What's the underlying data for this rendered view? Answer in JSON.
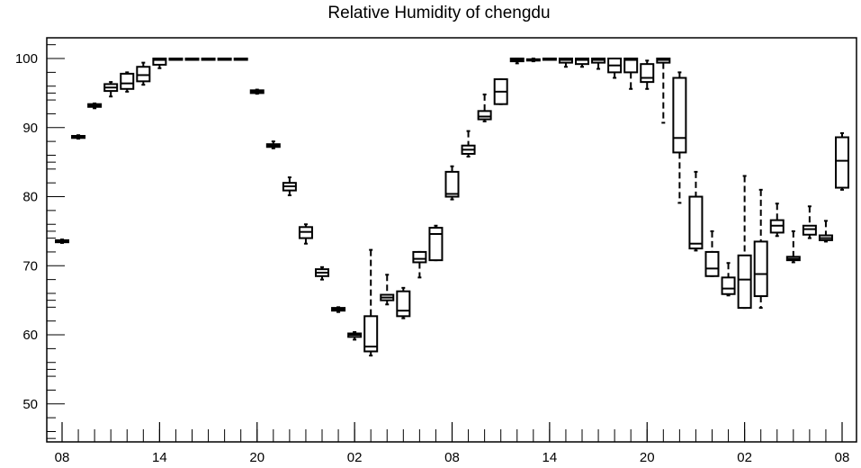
{
  "chart_data": {
    "type": "box",
    "title": "Relative Humidity of chengdu",
    "xlabel": "",
    "ylabel": "",
    "ylim": [
      44.5,
      103
    ],
    "y_ticks": [
      50,
      60,
      70,
      80,
      90,
      100
    ],
    "x_tick_labels": [
      {
        "label": "08",
        "index": 0
      },
      {
        "label": "14",
        "index": 6
      },
      {
        "label": "20",
        "index": 12
      },
      {
        "label": "02",
        "index": 18
      },
      {
        "label": "08",
        "index": 24
      },
      {
        "label": "14",
        "index": 30
      },
      {
        "label": "20",
        "index": 36
      },
      {
        "label": "02",
        "index": 42
      },
      {
        "label": "08",
        "index": 48
      }
    ],
    "x_minor_every": 1,
    "x_count": 49,
    "series": [
      {
        "values": [
          {
            "x": 0,
            "min": 73.3,
            "q1": 73.4,
            "median": 73.5,
            "q3": 73.7,
            "max": 73.8
          },
          {
            "x": 1,
            "min": 88.4,
            "q1": 88.5,
            "median": 88.7,
            "q3": 88.8,
            "max": 88.9
          },
          {
            "x": 2,
            "min": 92.8,
            "q1": 93.0,
            "median": 93.2,
            "q3": 93.4,
            "max": 93.5
          },
          {
            "x": 3,
            "min": 94.5,
            "q1": 95.3,
            "median": 95.8,
            "q3": 96.3,
            "max": 96.6
          },
          {
            "x": 4,
            "min": 95.2,
            "q1": 95.6,
            "median": 96.4,
            "q3": 97.8,
            "max": 98.0
          },
          {
            "x": 5,
            "min": 96.2,
            "q1": 96.7,
            "median": 97.6,
            "q3": 98.8,
            "max": 99.4
          },
          {
            "x": 6,
            "min": 98.6,
            "q1": 99.1,
            "median": 99.8,
            "q3": 100,
            "max": 100
          },
          {
            "x": 7,
            "min": 100,
            "q1": 100,
            "median": 100,
            "q3": 100,
            "max": 100
          },
          {
            "x": 8,
            "min": 100,
            "q1": 100,
            "median": 100,
            "q3": 100,
            "max": 100
          },
          {
            "x": 9,
            "min": 100,
            "q1": 100,
            "median": 100,
            "q3": 100,
            "max": 100
          },
          {
            "x": 10,
            "min": 100,
            "q1": 100,
            "median": 100,
            "q3": 100,
            "max": 100
          },
          {
            "x": 11,
            "min": 100,
            "q1": 100,
            "median": 100,
            "q3": 100,
            "max": 100
          },
          {
            "x": 12,
            "min": 94.9,
            "q1": 95.0,
            "median": 95.2,
            "q3": 95.4,
            "max": 95.5
          },
          {
            "x": 13,
            "min": 87.0,
            "q1": 87.2,
            "median": 87.4,
            "q3": 87.6,
            "max": 88.0
          },
          {
            "x": 14,
            "min": 80.2,
            "q1": 80.9,
            "median": 81.5,
            "q3": 82.0,
            "max": 82.8
          },
          {
            "x": 15,
            "min": 73.2,
            "q1": 74.0,
            "median": 74.9,
            "q3": 75.6,
            "max": 76.0
          },
          {
            "x": 16,
            "min": 68.0,
            "q1": 68.5,
            "median": 69.0,
            "q3": 69.5,
            "max": 69.8
          },
          {
            "x": 17,
            "min": 63.3,
            "q1": 63.5,
            "median": 63.7,
            "q3": 63.9,
            "max": 64.0
          },
          {
            "x": 18,
            "min": 59.3,
            "q1": 59.7,
            "median": 60.0,
            "q3": 60.2,
            "max": 60.4
          },
          {
            "x": 19,
            "min": 57.0,
            "q1": 57.6,
            "median": 58.3,
            "q3": 62.7,
            "max": 72.3
          },
          {
            "x": 20,
            "min": 64.4,
            "q1": 65.0,
            "median": 65.4,
            "q3": 65.8,
            "max": 68.7
          },
          {
            "x": 21,
            "min": 62.4,
            "q1": 62.7,
            "median": 63.5,
            "q3": 66.3,
            "max": 66.8
          },
          {
            "x": 22,
            "min": 68.3,
            "q1": 70.5,
            "median": 71.0,
            "q3": 72.0,
            "max": 72.0
          },
          {
            "x": 23,
            "min": 70.8,
            "q1": 70.8,
            "median": 74.6,
            "q3": 75.5,
            "max": 75.8
          },
          {
            "x": 24,
            "min": 79.6,
            "q1": 80.0,
            "median": 80.4,
            "q3": 83.6,
            "max": 84.4
          },
          {
            "x": 25,
            "min": 85.8,
            "q1": 86.2,
            "median": 86.8,
            "q3": 87.4,
            "max": 89.5
          },
          {
            "x": 26,
            "min": 90.9,
            "q1": 91.2,
            "median": 91.6,
            "q3": 92.4,
            "max": 94.8
          },
          {
            "x": 27,
            "min": 93.4,
            "q1": 93.4,
            "median": 95.2,
            "q3": 97.0,
            "max": 97.0
          },
          {
            "x": 28,
            "min": 99.3,
            "q1": 99.6,
            "median": 99.8,
            "q3": 100,
            "max": 100
          },
          {
            "x": 29,
            "min": 99.6,
            "q1": 99.7,
            "median": 99.8,
            "q3": 99.9,
            "max": 100
          },
          {
            "x": 30,
            "min": 99.9,
            "q1": 100,
            "median": 100,
            "q3": 100,
            "max": 100
          },
          {
            "x": 31,
            "min": 98.8,
            "q1": 99.4,
            "median": 99.8,
            "q3": 100,
            "max": 100
          },
          {
            "x": 32,
            "min": 98.8,
            "q1": 99.2,
            "median": 99.8,
            "q3": 100,
            "max": 100
          },
          {
            "x": 33,
            "min": 98.5,
            "q1": 99.4,
            "median": 99.8,
            "q3": 100,
            "max": 100
          },
          {
            "x": 34,
            "min": 97.2,
            "q1": 98.0,
            "median": 99.0,
            "q3": 100,
            "max": 100
          },
          {
            "x": 35,
            "min": 95.6,
            "q1": 98.0,
            "median": 99.8,
            "q3": 100,
            "max": 100
          },
          {
            "x": 36,
            "min": 95.6,
            "q1": 96.6,
            "median": 97.2,
            "q3": 99.2,
            "max": 99.7
          },
          {
            "x": 37,
            "min": 90.7,
            "q1": 99.4,
            "median": 99.8,
            "q3": 100,
            "max": 100
          },
          {
            "x": 38,
            "min": 79.1,
            "q1": 86.4,
            "median": 88.5,
            "q3": 97.2,
            "max": 98.0
          },
          {
            "x": 39,
            "min": 72.2,
            "q1": 72.5,
            "median": 73.2,
            "q3": 80.0,
            "max": 83.6
          },
          {
            "x": 40,
            "min": 68.5,
            "q1": 68.5,
            "median": 69.6,
            "q3": 72.0,
            "max": 75.0
          },
          {
            "x": 41,
            "min": 65.7,
            "q1": 65.9,
            "median": 66.7,
            "q3": 68.3,
            "max": 70.4
          },
          {
            "x": 42,
            "min": 63.9,
            "q1": 63.9,
            "median": 68.0,
            "q3": 71.5,
            "max": 83.0
          },
          {
            "x": 43,
            "min": 63.9,
            "q1": 65.6,
            "median": 68.8,
            "q3": 73.5,
            "max": 81.0
          },
          {
            "x": 44,
            "min": 74.3,
            "q1": 74.8,
            "median": 75.8,
            "q3": 76.6,
            "max": 79.0
          },
          {
            "x": 45,
            "min": 70.5,
            "q1": 70.8,
            "median": 71.0,
            "q3": 71.3,
            "max": 75.0
          },
          {
            "x": 46,
            "min": 74.0,
            "q1": 74.5,
            "median": 75.3,
            "q3": 75.8,
            "max": 78.6
          },
          {
            "x": 47,
            "min": 73.5,
            "q1": 73.7,
            "median": 74.0,
            "q3": 74.4,
            "max": 76.5
          },
          {
            "x": 48,
            "min": 81.0,
            "q1": 81.3,
            "median": 85.2,
            "q3": 88.6,
            "max": 89.2
          }
        ]
      }
    ]
  }
}
